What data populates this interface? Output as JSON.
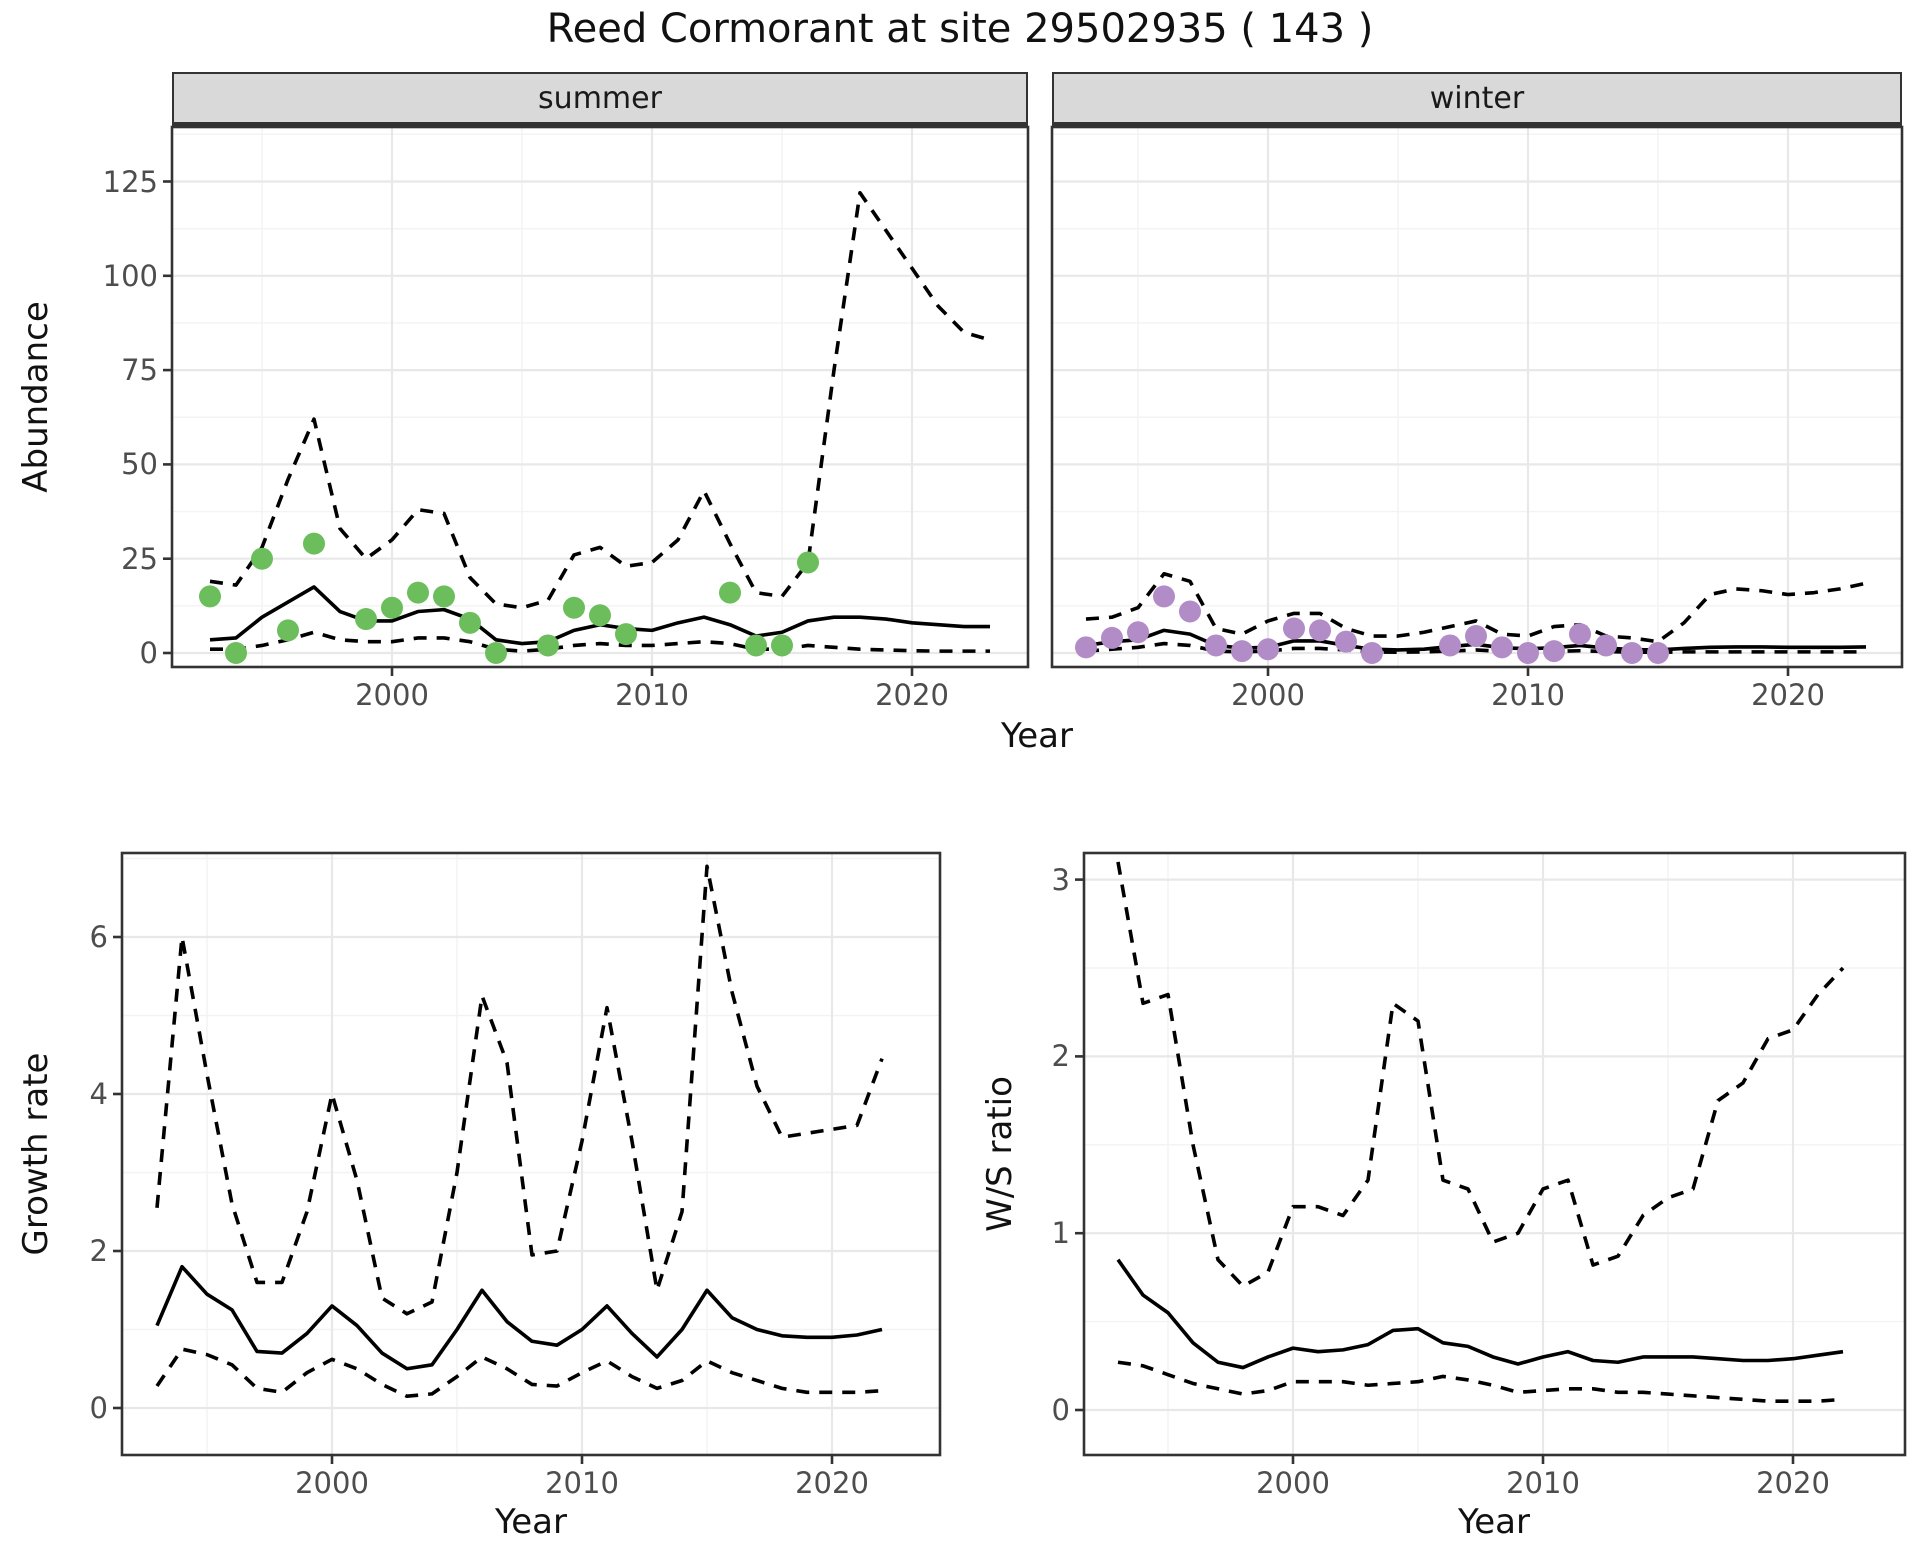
{
  "title": "Reed Cormorant at site 29502935 ( 143 )",
  "colors": {
    "summer_point": "#6cbe5c",
    "winter_point": "#b18cc6",
    "line": "#000000",
    "strip_bg": "#d9d9d9",
    "grid_major": "#e8e8e8",
    "grid_minor": "#f3f3f3",
    "tick_text": "#4d4d4d",
    "panel_border": "#333333"
  },
  "chart_data": [
    {
      "type": "line",
      "facet": "summer",
      "xlabel": "Year",
      "ylabel": "Abundance",
      "xticks": [
        2000,
        2010,
        2020
      ],
      "yticks": [
        0,
        25,
        50,
        75,
        100,
        125
      ],
      "xlim": [
        1991.6,
        2024.4
      ],
      "ylim": [
        -3.7,
        139.5
      ],
      "grid": true,
      "point_color": "#6cbe5c",
      "x": [
        1993,
        1994,
        1995,
        1996,
        1997,
        1998,
        1999,
        2000,
        2001,
        2002,
        2003,
        2004,
        2005,
        2006,
        2007,
        2008,
        2009,
        2010,
        2011,
        2012,
        2013,
        2014,
        2015,
        2016,
        2017,
        2018,
        2019,
        2020,
        2021,
        2022,
        2023
      ],
      "series": [
        {
          "name": "median_fit",
          "style": "solid",
          "values": [
            3.5,
            4,
            9.5,
            13.5,
            17.5,
            11,
            8.5,
            8.5,
            11,
            11.5,
            9,
            3.5,
            2.5,
            3,
            6,
            7.5,
            6.5,
            6,
            8,
            9.5,
            7.5,
            4.5,
            5.5,
            8.5,
            9.5,
            9.5,
            9,
            8,
            7.5,
            7,
            7
          ]
        },
        {
          "name": "upper_ci",
          "style": "dashed",
          "values": [
            19,
            18,
            28,
            46,
            62,
            33,
            25,
            30,
            38,
            37,
            20,
            13,
            12,
            14,
            26,
            28,
            23,
            24,
            30,
            43,
            29,
            16,
            15,
            24,
            75,
            122,
            112,
            102,
            92,
            85,
            83
          ]
        },
        {
          "name": "lower_ci",
          "style": "dashed",
          "values": [
            1,
            1,
            2,
            3.5,
            5.5,
            3.5,
            3,
            3,
            4,
            4,
            3,
            1,
            0.5,
            1,
            2,
            2.5,
            2,
            2,
            2.5,
            3,
            2.5,
            1,
            1,
            2,
            1.5,
            1,
            0.8,
            0.6,
            0.5,
            0.5,
            0.5
          ]
        }
      ],
      "points": {
        "name": "observed_counts",
        "years": [
          1993,
          1994,
          1995,
          1996,
          1997,
          1999,
          2000,
          2001,
          2002,
          2003,
          2004,
          2006,
          2007,
          2008,
          2009,
          2013,
          2014,
          2015,
          2016
        ],
        "values": [
          15,
          0,
          25,
          6,
          29,
          9,
          12,
          16,
          15,
          8,
          0,
          2,
          12,
          10,
          5,
          16,
          2,
          2,
          24
        ]
      }
    },
    {
      "type": "line",
      "facet": "winter",
      "xlabel": "Year",
      "ylabel": "Abundance",
      "xticks": [
        2000,
        2010,
        2020
      ],
      "yticks": [
        0,
        25,
        50,
        75,
        100,
        125
      ],
      "xlim": [
        1991.7,
        2024.5
      ],
      "ylim": [
        -3.7,
        139.5
      ],
      "grid": true,
      "point_color": "#b18cc6",
      "x": [
        1993,
        1994,
        1995,
        1996,
        1997,
        1998,
        1999,
        2000,
        2001,
        2002,
        2003,
        2004,
        2005,
        2006,
        2007,
        2008,
        2009,
        2010,
        2011,
        2012,
        2013,
        2014,
        2015,
        2016,
        2017,
        2018,
        2019,
        2020,
        2021,
        2022,
        2023
      ],
      "series": [
        {
          "name": "median_fit",
          "style": "solid",
          "values": [
            2,
            3,
            3.5,
            6,
            5,
            2,
            1.3,
            1.5,
            3.2,
            3.2,
            2,
            1,
            0.8,
            1,
            1.7,
            2.3,
            1.4,
            1.1,
            1.4,
            2,
            1.3,
            0.9,
            0.8,
            1.2,
            1.5,
            1.6,
            1.6,
            1.5,
            1.5,
            1.5,
            1.6
          ]
        },
        {
          "name": "upper_ci",
          "style": "dashed",
          "values": [
            9,
            9.5,
            12,
            21,
            19,
            6.5,
            5,
            8.5,
            10.5,
            10.5,
            6.5,
            4.5,
            4.5,
            5.5,
            7,
            8.5,
            5,
            4.5,
            7,
            7.5,
            4.5,
            4,
            3,
            8,
            15.5,
            17,
            16.5,
            15.5,
            16,
            17,
            18.5
          ]
        },
        {
          "name": "lower_ci",
          "style": "dashed",
          "values": [
            0.5,
            1,
            1.5,
            2.5,
            2,
            0.5,
            0.3,
            0.5,
            1.2,
            1.2,
            0.8,
            0.3,
            0.2,
            0.3,
            0.5,
            0.8,
            0.4,
            0.3,
            0.4,
            0.6,
            0.4,
            0.2,
            0.2,
            0.3,
            0.3,
            0.3,
            0.3,
            0.3,
            0.3,
            0.3,
            0.3
          ]
        }
      ],
      "points": {
        "name": "observed_counts",
        "years": [
          1993,
          1994,
          1995,
          1996,
          1997,
          1998,
          1999,
          2000,
          2001,
          2002,
          2003,
          2004,
          2007,
          2008,
          2009,
          2010,
          2011,
          2012,
          2013,
          2014,
          2015
        ],
        "values": [
          1.5,
          4,
          5.5,
          15,
          11,
          2,
          0.5,
          1,
          6.5,
          6,
          3,
          0,
          2,
          4.5,
          1.5,
          0,
          0.5,
          5,
          2,
          0,
          0
        ]
      }
    },
    {
      "type": "line",
      "facet": null,
      "xlabel": "Year",
      "ylabel": "Growth rate",
      "xticks": [
        2000,
        2010,
        2020
      ],
      "yticks": [
        0,
        2,
        4,
        6
      ],
      "xlim": [
        1991.6,
        2024.3
      ],
      "ylim": [
        -0.6,
        7.07
      ],
      "grid": true,
      "x": [
        1993,
        1994,
        1995,
        1996,
        1997,
        1998,
        1999,
        2000,
        2001,
        2002,
        2003,
        2004,
        2005,
        2006,
        2007,
        2008,
        2009,
        2010,
        2011,
        2012,
        2013,
        2014,
        2015,
        2016,
        2017,
        2018,
        2019,
        2020,
        2021,
        2022
      ],
      "series": [
        {
          "name": "median",
          "style": "solid",
          "values": [
            1.05,
            1.8,
            1.45,
            1.25,
            0.72,
            0.7,
            0.95,
            1.3,
            1.05,
            0.7,
            0.5,
            0.55,
            1.0,
            1.5,
            1.1,
            0.85,
            0.8,
            1.0,
            1.3,
            0.95,
            0.65,
            1.0,
            1.5,
            1.15,
            1.0,
            0.92,
            0.9,
            0.9,
            0.93,
            1.0
          ]
        },
        {
          "name": "upper_ci",
          "style": "dashed",
          "values": [
            2.55,
            6.0,
            4.25,
            2.6,
            1.6,
            1.6,
            2.5,
            4.0,
            2.9,
            1.4,
            1.2,
            1.35,
            3.0,
            5.25,
            4.4,
            1.95,
            2.0,
            3.4,
            5.1,
            3.4,
            1.5,
            2.5,
            6.9,
            5.3,
            4.1,
            3.45,
            3.5,
            3.55,
            3.6,
            4.45
          ]
        },
        {
          "name": "lower_ci",
          "style": "dashed",
          "values": [
            0.28,
            0.75,
            0.68,
            0.55,
            0.25,
            0.2,
            0.45,
            0.62,
            0.5,
            0.3,
            0.15,
            0.18,
            0.4,
            0.65,
            0.5,
            0.3,
            0.28,
            0.45,
            0.6,
            0.4,
            0.25,
            0.35,
            0.6,
            0.45,
            0.35,
            0.25,
            0.2,
            0.2,
            0.2,
            0.22
          ]
        }
      ]
    },
    {
      "type": "line",
      "facet": null,
      "xlabel": "Year",
      "ylabel": "W/S ratio",
      "xticks": [
        2000,
        2010,
        2020
      ],
      "yticks": [
        0,
        1,
        2,
        3
      ],
      "xlim": [
        1991.6,
        2024.4
      ],
      "ylim": [
        -0.25,
        3.15
      ],
      "grid": true,
      "x": [
        1993,
        1994,
        1995,
        1996,
        1997,
        1998,
        1999,
        2000,
        2001,
        2002,
        2003,
        2004,
        2005,
        2006,
        2007,
        2008,
        2009,
        2010,
        2011,
        2012,
        2013,
        2014,
        2015,
        2016,
        2017,
        2018,
        2019,
        2020,
        2021,
        2022
      ],
      "series": [
        {
          "name": "median",
          "style": "solid",
          "values": [
            0.85,
            0.65,
            0.55,
            0.38,
            0.27,
            0.24,
            0.3,
            0.35,
            0.33,
            0.34,
            0.37,
            0.45,
            0.46,
            0.38,
            0.36,
            0.3,
            0.26,
            0.3,
            0.33,
            0.28,
            0.27,
            0.3,
            0.3,
            0.3,
            0.29,
            0.28,
            0.28,
            0.29,
            0.31,
            0.33
          ]
        },
        {
          "name": "upper_ci",
          "style": "dashed",
          "values": [
            3.1,
            2.3,
            2.35,
            1.5,
            0.85,
            0.7,
            0.78,
            1.15,
            1.15,
            1.1,
            1.3,
            2.3,
            2.2,
            1.3,
            1.25,
            0.95,
            1.0,
            1.25,
            1.3,
            0.82,
            0.87,
            1.1,
            1.2,
            1.25,
            1.75,
            1.85,
            2.1,
            2.15,
            2.35,
            2.5
          ]
        },
        {
          "name": "lower_ci",
          "style": "dashed",
          "values": [
            0.27,
            0.25,
            0.2,
            0.15,
            0.12,
            0.09,
            0.11,
            0.16,
            0.16,
            0.16,
            0.14,
            0.15,
            0.16,
            0.19,
            0.17,
            0.14,
            0.1,
            0.11,
            0.12,
            0.12,
            0.1,
            0.1,
            0.09,
            0.08,
            0.07,
            0.06,
            0.05,
            0.05,
            0.05,
            0.06
          ]
        }
      ]
    }
  ]
}
